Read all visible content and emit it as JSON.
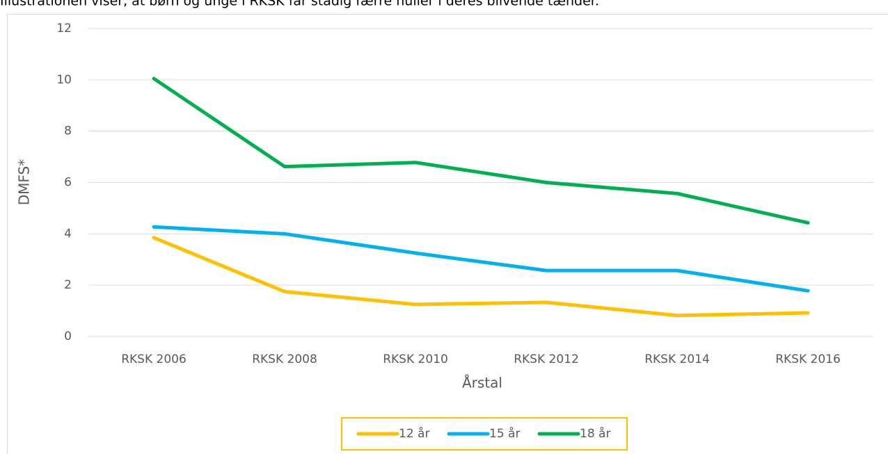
{
  "caption": "Illustrationen viser, at børn og unge i RKSK får stadig færre huller i deres blivende tænder.",
  "chart_data": {
    "type": "line",
    "x_label": "Årstal",
    "y_label": "DMFS*",
    "categories": [
      "RKSK 2006",
      "RKSK 2008",
      "RKSK 2010",
      "RKSK 2012",
      "RKSK 2014",
      "RKSK 2016"
    ],
    "series": [
      {
        "name": "12 år",
        "color": "#FFC000",
        "values": [
          3.85,
          1.75,
          1.25,
          1.33,
          0.82,
          0.92
        ]
      },
      {
        "name": "15 år",
        "color": "#00B0F0",
        "values": [
          4.27,
          4.0,
          3.25,
          2.57,
          2.57,
          1.78
        ]
      },
      {
        "name": "18 år",
        "color": "#00B050",
        "values": [
          10.05,
          6.62,
          6.78,
          6.0,
          5.57,
          4.43
        ]
      }
    ],
    "ylim": [
      0,
      12
    ],
    "yticks": [
      0,
      2,
      4,
      6,
      8,
      10,
      12
    ],
    "grid": true,
    "legend": "bottom"
  }
}
